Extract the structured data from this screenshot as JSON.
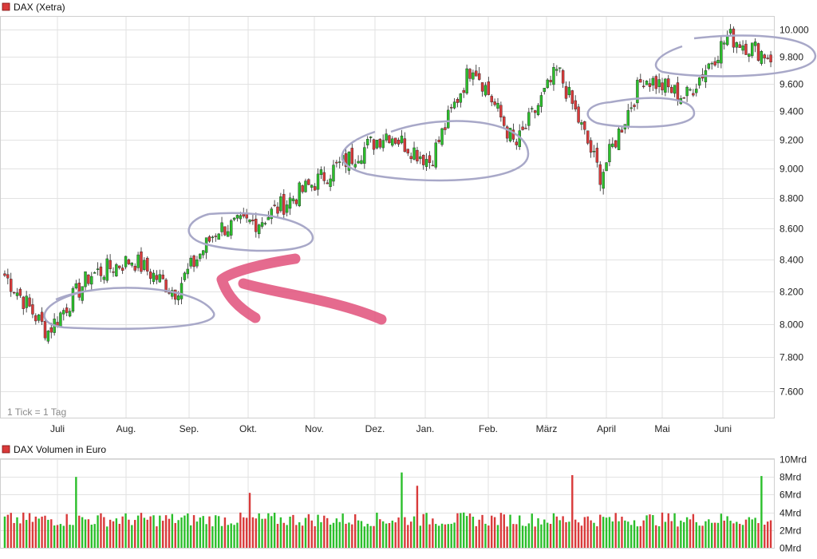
{
  "colors": {
    "up": "#2bbf2b",
    "down": "#d93a3a",
    "grid": "#e2e2e2",
    "ellipse": "#a8a8c8",
    "arrow": "#e0507a",
    "legend_square": "#d93a3a"
  },
  "chart_data": [
    {
      "type": "candlestick",
      "title": "DAX (Xetra)",
      "note": "1 Tick = 1 Tag",
      "x_tick_labels": [
        "Juli",
        "Aug.",
        "Sep.",
        "Okt.",
        "Nov.",
        "Dez.",
        "Jan.",
        "Feb.",
        "März",
        "April",
        "Mai",
        "Juni"
      ],
      "y_tick_labels": [
        "7.600",
        "7.800",
        "8.000",
        "8.200",
        "8.400",
        "8.600",
        "8.800",
        "9.000",
        "9.200",
        "9.400",
        "9.600",
        "9.800",
        "10.000"
      ],
      "y_ticks": [
        7600,
        7800,
        8000,
        8200,
        8400,
        8600,
        8800,
        9000,
        9200,
        9400,
        9600,
        9800,
        10000
      ],
      "ylim": [
        7450,
        10100
      ],
      "y_scale": "log",
      "grid": true,
      "monthly_closes_approx": [
        {
          "month": "Juni",
          "value": 8300
        },
        {
          "month": "Juli",
          "value": 7950
        },
        {
          "month": "Juli",
          "value": 8300
        },
        {
          "month": "Aug.",
          "value": 8400
        },
        {
          "month": "Sep.",
          "value": 8200
        },
        {
          "month": "Sep.",
          "value": 8600
        },
        {
          "month": "Okt.",
          "value": 8650
        },
        {
          "month": "Okt.",
          "value": 8850
        },
        {
          "month": "Nov.",
          "value": 9050
        },
        {
          "month": "Nov.",
          "value": 9250
        },
        {
          "month": "Dez.",
          "value": 9050
        },
        {
          "month": "Jan.",
          "value": 9750
        },
        {
          "month": "Feb.",
          "value": 9150
        },
        {
          "month": "März",
          "value": 9700
        },
        {
          "month": "März",
          "value": 8950
        },
        {
          "month": "April",
          "value": 9650
        },
        {
          "month": "Mai",
          "value": 9500
        },
        {
          "month": "Juni",
          "value": 9950
        },
        {
          "month": "Juni",
          "value": 9800
        }
      ]
    },
    {
      "type": "bar",
      "title": "DAX Volumen in Euro",
      "y_tick_labels": [
        "0Mrd",
        "2Mrd",
        "4Mrd",
        "6Mrd",
        "8Mrd",
        "10Mrd"
      ],
      "y_ticks": [
        0,
        2,
        4,
        6,
        8,
        10
      ],
      "ylim": [
        0,
        10
      ],
      "unit": "Mrd",
      "notable_values": [
        8,
        8.5,
        6.2,
        7,
        8.2,
        8.1
      ]
    }
  ]
}
